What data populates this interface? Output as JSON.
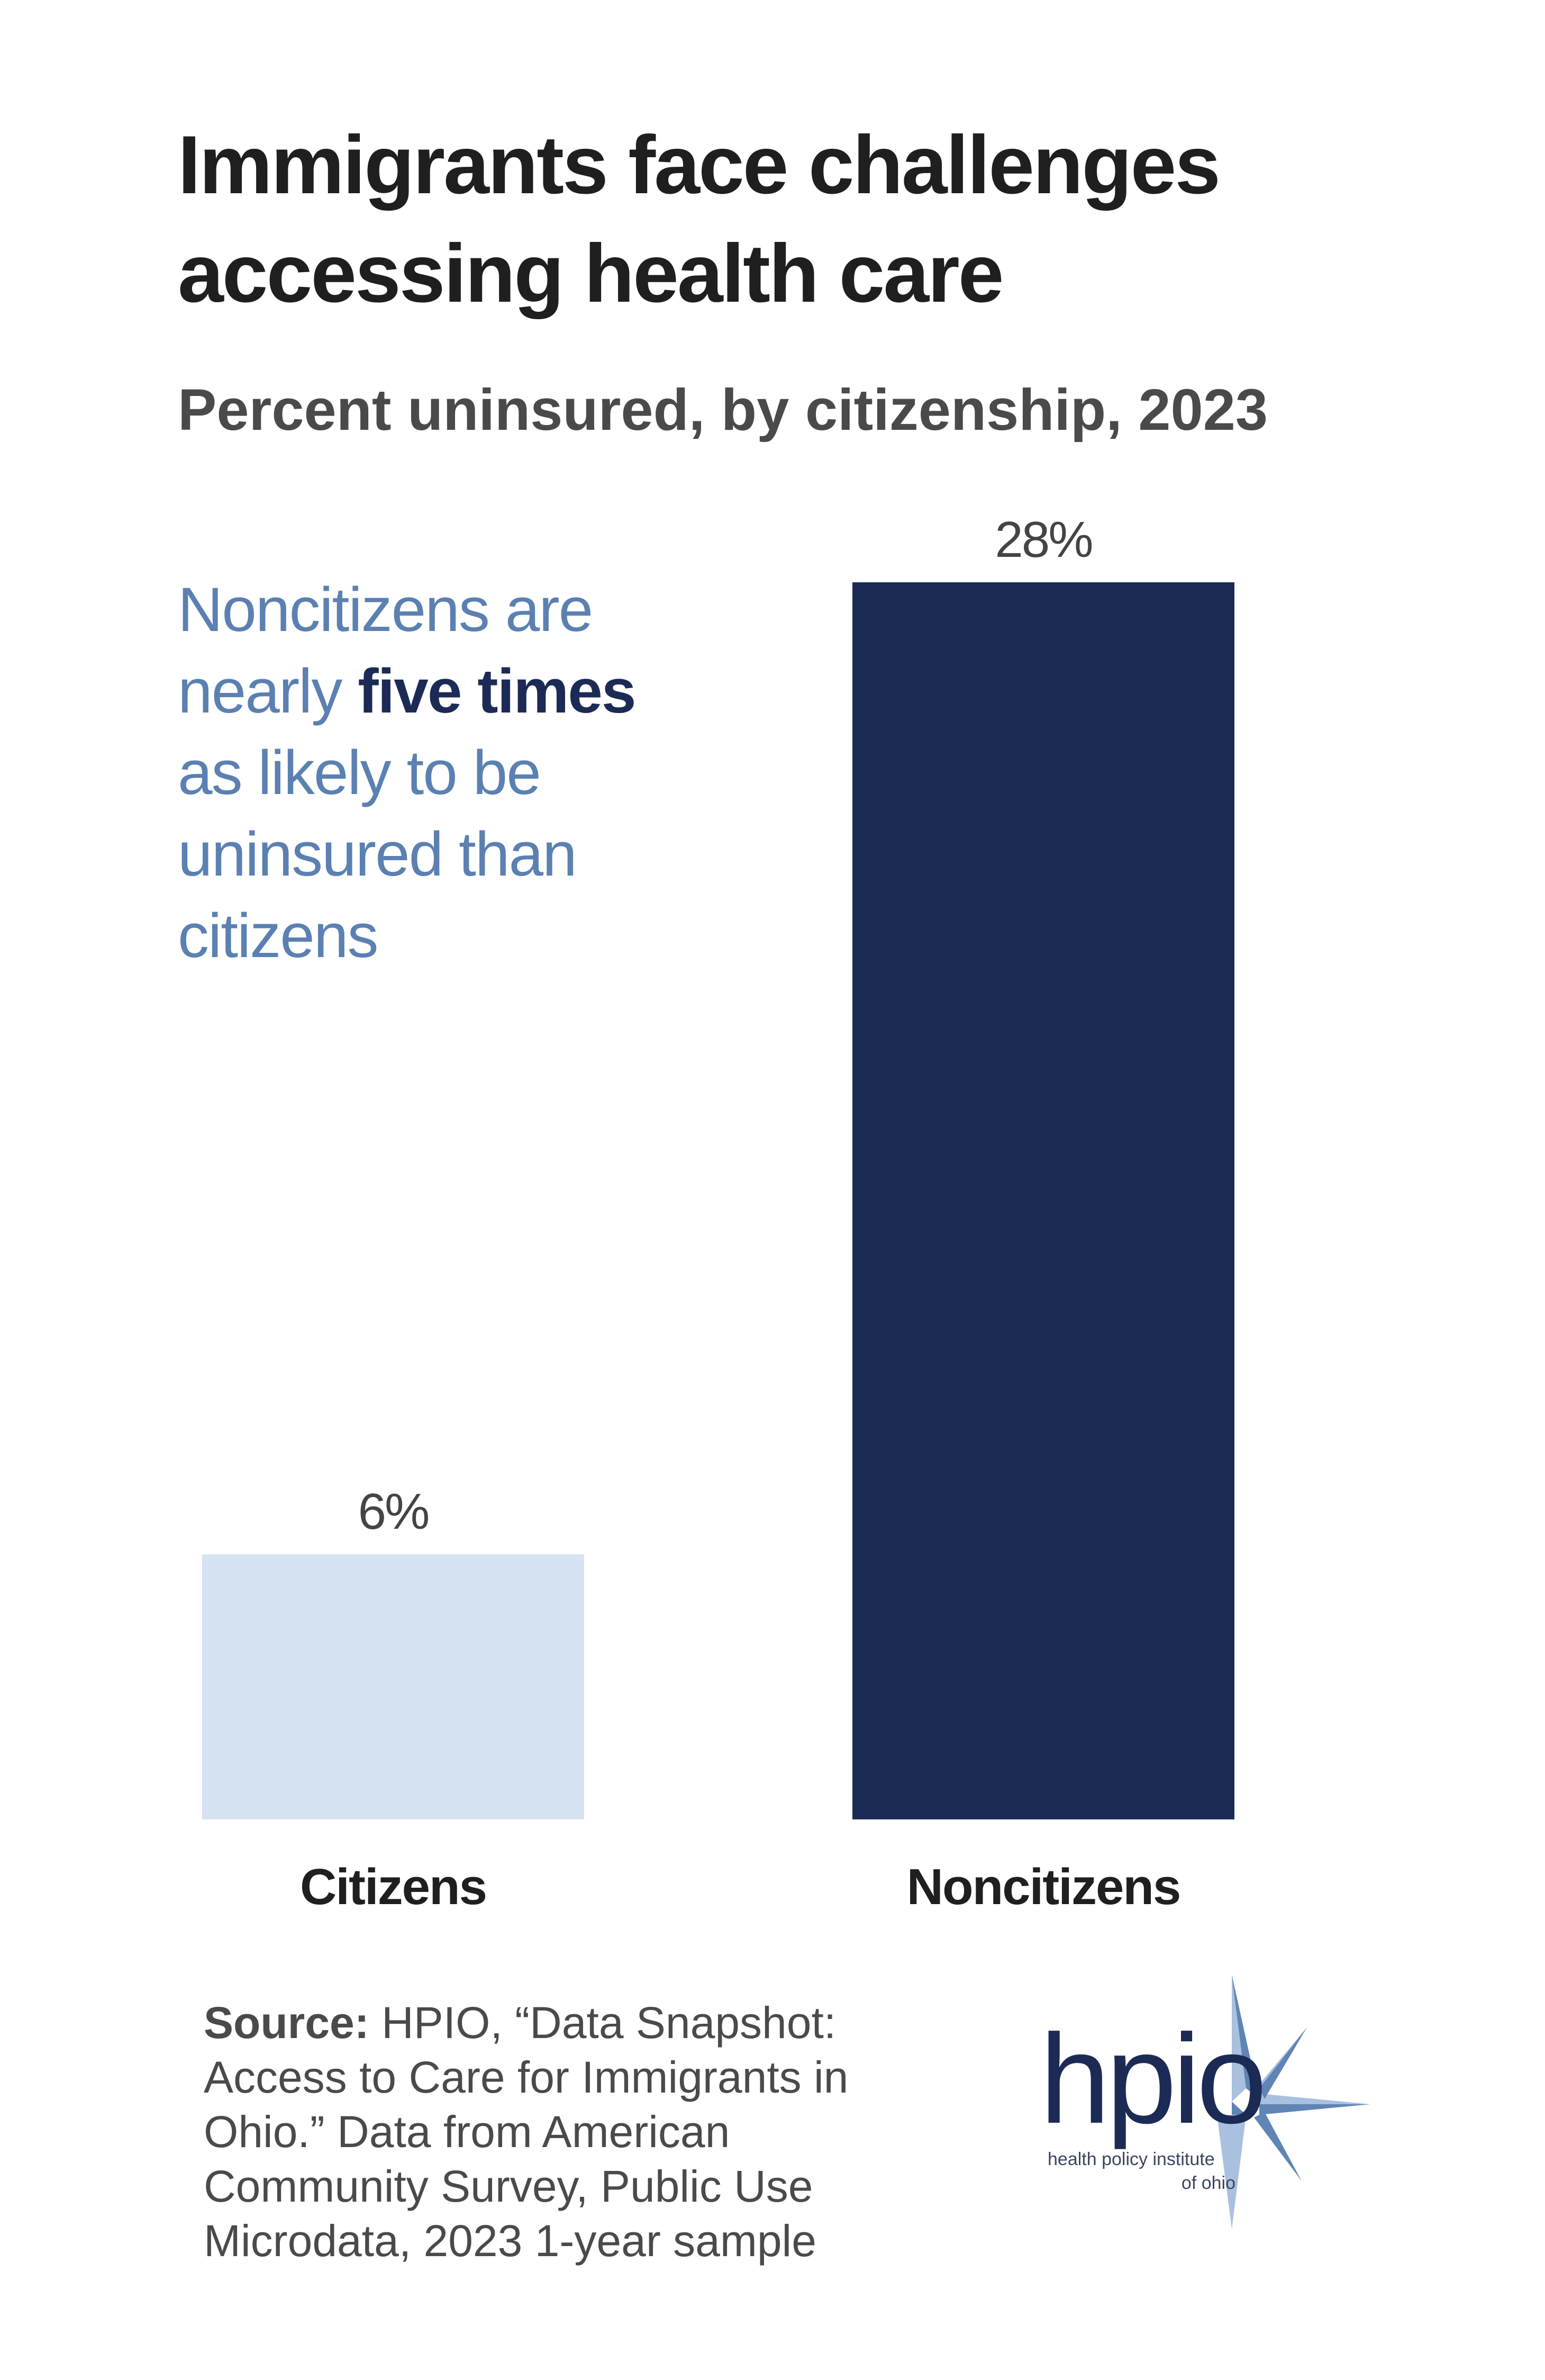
{
  "title_lines": [
    "Immigrants face challenges",
    "accessing health care"
  ],
  "subtitle": "Percent uninsured, by citizenship, 2023",
  "annotation": {
    "line1": "Noncitizens are",
    "line2_pre": "nearly ",
    "line2_bold": "five times",
    "line3": "as likely to be",
    "line4": "uninsured than",
    "line5": "citizens"
  },
  "chart_data": {
    "type": "bar",
    "title": "Percent uninsured, by citizenship, 2023",
    "categories": [
      "Citizens",
      "Noncitizens"
    ],
    "values": [
      6,
      28
    ],
    "data_labels": [
      "6%",
      "28%"
    ],
    "colors": [
      "#d6e3f3",
      "#1b2b55"
    ],
    "ylim": [
      0,
      28
    ],
    "grid": false,
    "xlabel": "",
    "ylabel": ""
  },
  "source": {
    "label": "Source:",
    "text": " HPIO, “Data Snapshot: Access to Care for Immigrants in Ohio.” Data from American Community Survey, Public Use Microdata, 2023 1-year sample"
  },
  "logo": {
    "wordmark": "hpio",
    "line1": "health policy institute",
    "line2": "of ohio",
    "colors": {
      "text": "#1b2b55",
      "star_light": "#a9c0df",
      "star_dark": "#5f84b5"
    }
  }
}
